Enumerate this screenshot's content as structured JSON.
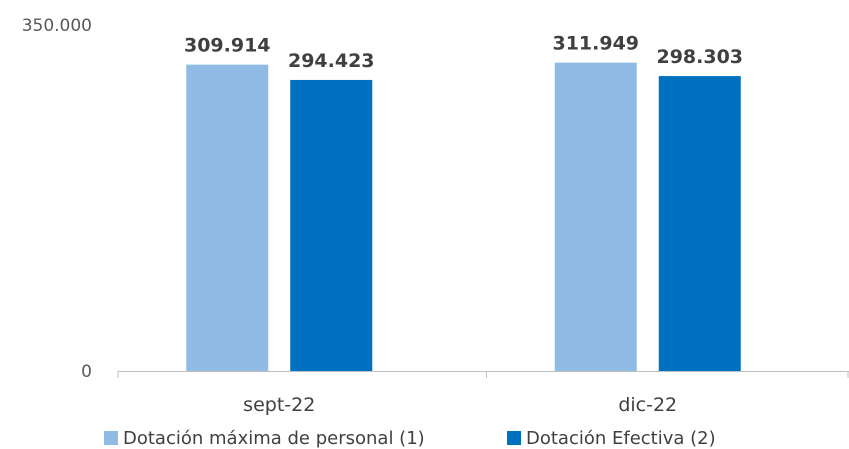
{
  "chart_data": {
    "type": "bar",
    "categories": [
      "sept-22",
      "dic-22"
    ],
    "series": [
      {
        "name": "Dotación máxima de personal (1)",
        "values": [
          "309.914",
          "311.949"
        ],
        "color": "#8fbbe4"
      },
      {
        "name": "Dotación Efectiva (2)",
        "values": [
          "294.423",
          "298.303"
        ],
        "color": "#0070c0"
      }
    ],
    "ylim": [
      0,
      350000
    ],
    "yticks": [
      "0",
      "350.000"
    ],
    "grid": false,
    "legend_position": "bottom"
  }
}
